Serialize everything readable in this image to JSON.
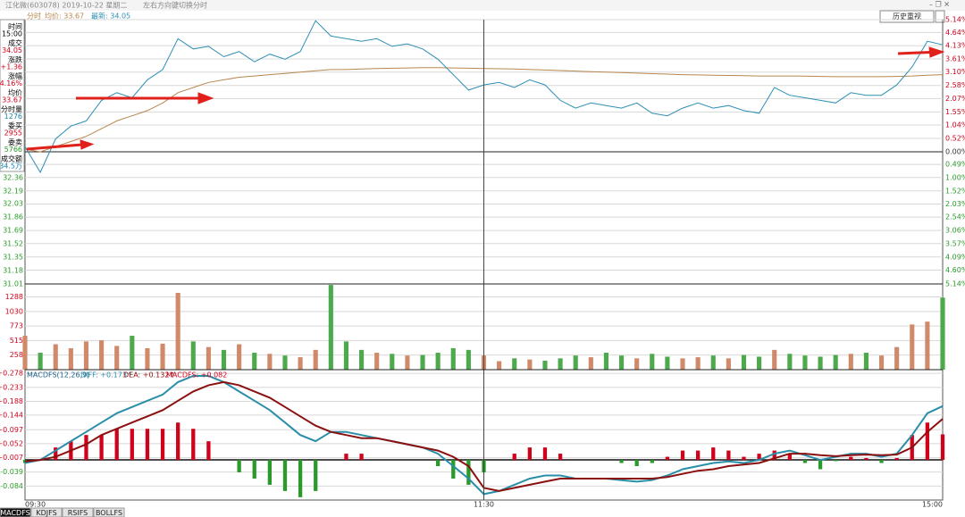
{
  "header": {
    "title": "江化微(603078) 2019-10-22 星期二",
    "hint": "左右方向键切换分时",
    "button": "历史重视"
  },
  "info_panel": [
    {
      "label": "时间",
      "value": "15:00",
      "color": "#000000"
    },
    {
      "label": "成交",
      "value": "34.05",
      "color": "#d0021b"
    },
    {
      "label": "涨跌",
      "value": "+1.36",
      "color": "#d0021b"
    },
    {
      "label": "涨幅",
      "value": "+4.16%",
      "color": "#d0021b"
    },
    {
      "label": "均价",
      "value": "33.67",
      "color": "#d0021b"
    },
    {
      "label": "分时量",
      "value": "1276",
      "color": "#1a7fa8"
    },
    {
      "label": "委买",
      "value": "2955",
      "color": "#d0021b"
    },
    {
      "label": "委卖",
      "value": "5766",
      "color": "#2a9a2a"
    },
    {
      "label": "成交额",
      "value": "34.5万",
      "color": "#1a7fa8"
    }
  ],
  "tabs": [
    "MACDFS",
    "KDJFS",
    "RSIFS",
    "BOLLFS"
  ],
  "chart_data": [
    {
      "type": "line",
      "title": "分时",
      "ylim": [
        31.01,
        34.37
      ],
      "yticks": [
        32.36,
        32.19,
        32.03,
        31.86,
        31.69,
        31.52,
        31.35,
        31.18,
        31.01
      ],
      "y2lim": [
        -5.14,
        5.14
      ],
      "y2ticks": [
        {
          "value": 5.14,
          "label": "5.14%"
        },
        {
          "value": 4.64,
          "label": "4.64%"
        },
        {
          "value": 4.13,
          "label": "4.13%"
        },
        {
          "value": 3.61,
          "label": "3.61%"
        },
        {
          "value": 3.1,
          "label": "3.10%"
        },
        {
          "value": 2.58,
          "label": "2.58%"
        },
        {
          "value": 2.07,
          "label": "2.07%"
        },
        {
          "value": 1.55,
          "label": "1.55%"
        },
        {
          "value": 1.04,
          "label": "1.04%"
        },
        {
          "value": 0.52,
          "label": "0.52%"
        },
        {
          "value": 0,
          "label": "0.00%"
        },
        {
          "value": -0.49,
          "label": "0.49%"
        },
        {
          "value": -1.0,
          "label": "1.00%"
        },
        {
          "value": -1.52,
          "label": "1.52%"
        },
        {
          "value": -2.03,
          "label": "2.03%"
        },
        {
          "value": -2.54,
          "label": "2.54%"
        },
        {
          "value": -3.06,
          "label": "3.06%"
        },
        {
          "value": -3.57,
          "label": "3.57%"
        },
        {
          "value": -4.09,
          "label": "4.09%"
        },
        {
          "value": -4.6,
          "label": "4.60%"
        },
        {
          "value": -5.14,
          "label": "5.14%"
        }
      ],
      "grid": true,
      "series": [
        {
          "name": "均价: 33.67",
          "color": "#b8864e",
          "axis": "y2",
          "values": [
            0.1,
            0.0,
            0.2,
            0.4,
            0.6,
            0.9,
            1.2,
            1.4,
            1.6,
            1.9,
            2.3,
            2.5,
            2.7,
            2.8,
            2.9,
            2.95,
            3.0,
            3.05,
            3.1,
            3.15,
            3.2,
            3.2,
            3.22,
            3.24,
            3.25,
            3.26,
            3.27,
            3.27,
            3.26,
            3.25,
            3.24,
            3.23,
            3.22,
            3.2,
            3.18,
            3.16,
            3.14,
            3.12,
            3.1,
            3.08,
            3.06,
            3.04,
            3.02,
            3.0,
            2.99,
            2.98,
            2.97,
            2.96,
            2.95,
            2.95,
            2.95,
            2.94,
            2.93,
            2.92,
            2.92,
            2.92,
            2.92,
            2.93,
            2.95,
            2.98,
            3.0
          ]
        },
        {
          "name": "最新: 34.05",
          "color": "#2f8fb5",
          "axis": "y2",
          "values": [
            0.2,
            -0.8,
            0.5,
            1.0,
            1.2,
            2.0,
            2.3,
            2.1,
            2.8,
            3.2,
            4.4,
            4.0,
            4.1,
            3.7,
            3.9,
            3.5,
            3.8,
            3.6,
            3.9,
            5.1,
            4.5,
            4.4,
            4.3,
            4.4,
            4.1,
            4.2,
            4.0,
            3.6,
            3.0,
            2.4,
            2.6,
            2.7,
            2.5,
            2.8,
            2.6,
            2.0,
            1.7,
            1.9,
            1.8,
            1.7,
            1.9,
            1.5,
            1.4,
            1.7,
            1.9,
            1.7,
            1.8,
            1.6,
            1.5,
            2.5,
            2.2,
            2.1,
            2.0,
            1.9,
            2.3,
            2.2,
            2.2,
            2.6,
            3.3,
            4.3,
            4.16
          ]
        }
      ]
    },
    {
      "type": "bar",
      "ylim": [
        0,
        1517
      ],
      "yticks": [
        1288,
        1030,
        773,
        515,
        258
      ],
      "grid": true,
      "colors": {
        "up": "#d08a6a",
        "down": "#4caa4c"
      },
      "values": [
        600,
        300,
        450,
        380,
        500,
        520,
        420,
        600,
        380,
        460,
        1360,
        500,
        400,
        350,
        450,
        300,
        280,
        250,
        220,
        350,
        1500,
        500,
        350,
        300,
        280,
        250,
        260,
        300,
        380,
        350,
        250,
        150,
        200,
        180,
        160,
        200,
        250,
        220,
        300,
        250,
        200,
        280,
        230,
        200,
        220,
        250,
        200,
        260,
        230,
        350,
        280,
        250,
        230,
        260,
        280,
        300,
        250,
        400,
        800,
        850,
        1276
      ]
    },
    {
      "type": "line",
      "title": "MACDFS(12,26,9)",
      "ylim": [
        -0.129,
        0.29
      ],
      "yticks": [
        {
          "value": 0.278,
          "label": "+0.278"
        },
        {
          "value": 0.233,
          "label": "+0.233"
        },
        {
          "value": 0.188,
          "label": "+0.188"
        },
        {
          "value": 0.144,
          "label": "+0.144"
        },
        {
          "value": 0.097,
          "label": "+0.097"
        },
        {
          "value": 0.052,
          "label": "+0.052"
        },
        {
          "value": 0.007,
          "label": "+0.007"
        },
        -0.039,
        -0.084
      ],
      "grid": true,
      "categories": [
        "09:30",
        null,
        null,
        null,
        null,
        null,
        null,
        null,
        null,
        null,
        null,
        null,
        null,
        null,
        null,
        null,
        null,
        null,
        null,
        null,
        null,
        null,
        null,
        null,
        null,
        null,
        null,
        null,
        null,
        null,
        "11:30",
        null,
        null,
        null,
        null,
        null,
        null,
        null,
        null,
        null,
        null,
        null,
        null,
        null,
        null,
        null,
        null,
        null,
        null,
        null,
        null,
        null,
        null,
        null,
        null,
        null,
        null,
        null,
        null,
        null,
        "15:00"
      ],
      "series": [
        {
          "name": "DIFF: +0.173↑",
          "type": "line",
          "color": "#2a8ea8",
          "values": [
            -0.01,
            0.0,
            0.03,
            0.06,
            0.09,
            0.12,
            0.15,
            0.17,
            0.19,
            0.21,
            0.25,
            0.27,
            0.27,
            0.25,
            0.22,
            0.19,
            0.16,
            0.12,
            0.08,
            0.06,
            0.09,
            0.09,
            0.08,
            0.07,
            0.06,
            0.05,
            0.04,
            0.02,
            -0.02,
            -0.06,
            -0.11,
            -0.1,
            -0.08,
            -0.06,
            -0.05,
            -0.05,
            -0.06,
            -0.06,
            -0.06,
            -0.065,
            -0.07,
            -0.065,
            -0.05,
            -0.03,
            -0.02,
            -0.01,
            -0.005,
            -0.01,
            0.0,
            0.02,
            0.03,
            0.015,
            0.0,
            0.01,
            0.02,
            0.02,
            0.01,
            0.02,
            0.08,
            0.15,
            0.173
          ]
        },
        {
          "name": "DEA: +0.132↑",
          "type": "line",
          "color": "#8b1010",
          "values": [
            -0.005,
            0.0,
            0.01,
            0.03,
            0.05,
            0.08,
            0.1,
            0.12,
            0.14,
            0.16,
            0.19,
            0.22,
            0.24,
            0.25,
            0.24,
            0.22,
            0.2,
            0.17,
            0.14,
            0.11,
            0.09,
            0.08,
            0.07,
            0.07,
            0.06,
            0.05,
            0.04,
            0.03,
            0.01,
            -0.02,
            -0.09,
            -0.1,
            -0.09,
            -0.08,
            -0.07,
            -0.06,
            -0.06,
            -0.06,
            -0.06,
            -0.06,
            -0.06,
            -0.06,
            -0.055,
            -0.045,
            -0.035,
            -0.03,
            -0.02,
            -0.015,
            -0.01,
            0.005,
            0.02,
            0.02,
            0.015,
            0.012,
            0.015,
            0.017,
            0.015,
            0.017,
            0.04,
            0.09,
            0.132
          ]
        },
        {
          "name": "MACDFS: +0.082",
          "type": "bar",
          "color": "#d0021b",
          "down_color": "#2a9a2a",
          "values": [
            -0.01,
            0,
            0.04,
            0.06,
            0.08,
            0.08,
            0.1,
            0.1,
            0.1,
            0.1,
            0.12,
            0.1,
            0.06,
            0.0,
            -0.04,
            -0.06,
            -0.08,
            -0.1,
            -0.12,
            -0.1,
            0.0,
            0.02,
            0.02,
            0.0,
            0.0,
            0.0,
            0.0,
            -0.02,
            -0.06,
            -0.08,
            -0.04,
            0.0,
            0.02,
            0.04,
            0.04,
            0.02,
            0,
            0,
            0,
            -0.01,
            -0.02,
            -0.01,
            0.01,
            0.03,
            0.03,
            0.04,
            0.03,
            0.01,
            0.02,
            0.03,
            0.02,
            -0.01,
            -0.03,
            -0.004,
            0.01,
            0.006,
            -0.01,
            0.006,
            0.08,
            0.12,
            0.082
          ]
        }
      ]
    }
  ]
}
